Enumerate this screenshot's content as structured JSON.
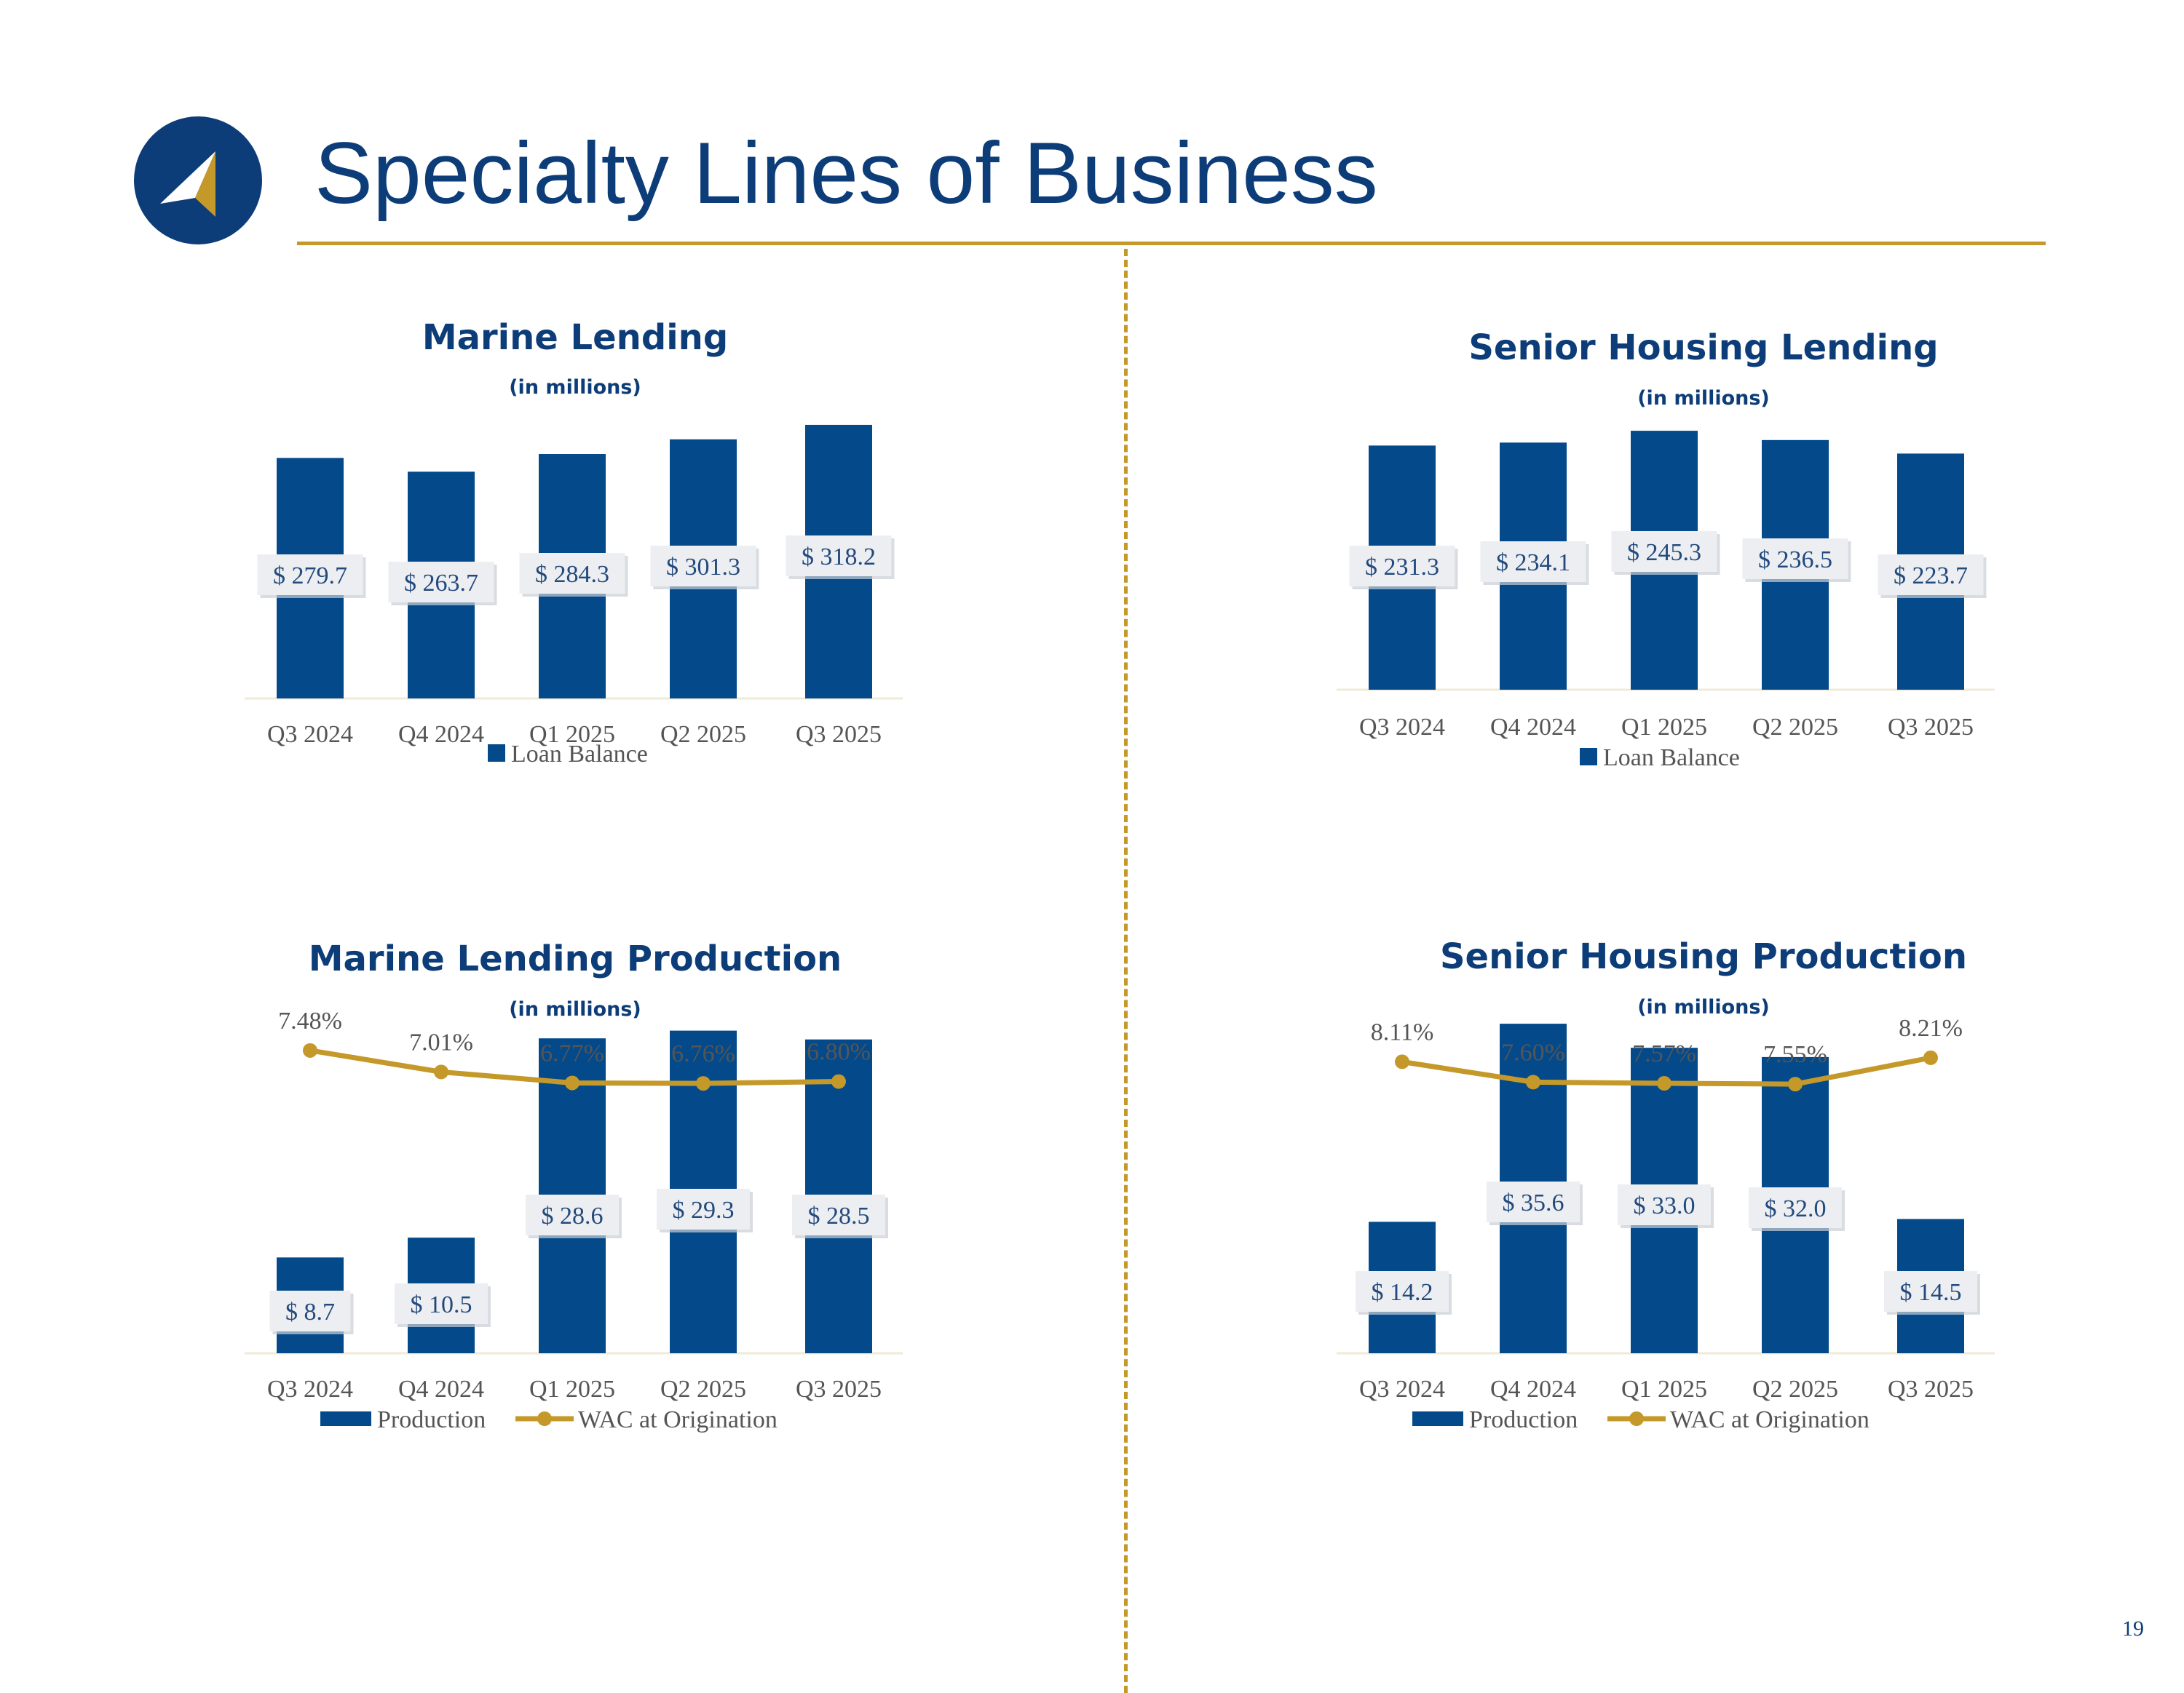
{
  "page": {
    "title": "Specialty Lines of Business",
    "page_number": "19",
    "colors": {
      "navy": "#0d3d78",
      "bar": "#044a8a",
      "gold": "#c4992a",
      "label_text": "#234a7c",
      "axis_text": "#555555"
    },
    "logo_icon": "compass-arrow-icon"
  },
  "chart_data": [
    {
      "id": "marine-lending",
      "type": "bar",
      "title": "Marine Lending",
      "subtitle": "(in millions)",
      "categories": [
        "Q3 2024",
        "Q4 2024",
        "Q1 2025",
        "Q2 2025",
        "Q3 2025"
      ],
      "series": [
        {
          "name": "Loan Balance",
          "values": [
            279.7,
            263.7,
            284.3,
            301.3,
            318.2
          ],
          "labels": [
            "$ 279.7",
            "$ 263.7",
            "$ 284.3",
            "$ 301.3",
            "$ 318.2"
          ]
        }
      ],
      "ylim": [
        0,
        330
      ],
      "legend": "bottom",
      "grid": false
    },
    {
      "id": "senior-housing-lending",
      "type": "bar",
      "title": "Senior Housing Lending",
      "subtitle": "(in millions)",
      "categories": [
        "Q3 2024",
        "Q4 2024",
        "Q1 2025",
        "Q2 2025",
        "Q3 2025"
      ],
      "series": [
        {
          "name": "Loan Balance",
          "values": [
            231.3,
            234.1,
            245.3,
            236.5,
            223.7
          ],
          "labels": [
            "$ 231.3",
            "$ 234.1",
            "$ 245.3",
            "$ 236.5",
            "$ 223.7"
          ]
        }
      ],
      "ylim": [
        0,
        255
      ],
      "legend": "bottom",
      "grid": false
    },
    {
      "id": "marine-lending-production",
      "type": "bar",
      "title": "Marine Lending Production",
      "subtitle": "(in millions)",
      "categories": [
        "Q3 2024",
        "Q4 2024",
        "Q1 2025",
        "Q2 2025",
        "Q3 2025"
      ],
      "series": [
        {
          "name": "Production",
          "type": "bar",
          "values": [
            8.7,
            10.5,
            28.6,
            29.3,
            28.5
          ],
          "labels": [
            "$ 8.7",
            "$ 10.5",
            "$ 28.6",
            "$ 29.3",
            "$ 28.5"
          ]
        },
        {
          "name": "WAC at Origination",
          "type": "line",
          "values": [
            7.48,
            7.01,
            6.77,
            6.76,
            6.8
          ],
          "labels": [
            "7.48%",
            "7.01%",
            "6.77%",
            "6.76%",
            "6.80%"
          ]
        }
      ],
      "ylim": [
        0,
        30
      ],
      "ylim_secondary": [
        4.2,
        7.7
      ],
      "legend": "bottom",
      "grid": false
    },
    {
      "id": "senior-housing-production",
      "type": "bar",
      "title": "Senior Housing Production",
      "subtitle": "(in millions)",
      "categories": [
        "Q3 2024",
        "Q4 2024",
        "Q1 2025",
        "Q2 2025",
        "Q3 2025"
      ],
      "series": [
        {
          "name": "Production",
          "type": "bar",
          "values": [
            14.2,
            35.6,
            33.0,
            32.0,
            14.5
          ],
          "labels": [
            "$ 14.2",
            "$ 35.6",
            "$ 33.0",
            "$ 32.0",
            "$ 14.5"
          ]
        },
        {
          "name": "WAC at Origination",
          "type": "line",
          "values": [
            8.11,
            7.6,
            7.57,
            7.55,
            8.21
          ],
          "labels": [
            "8.11%",
            "7.60%",
            "7.57%",
            "7.55%",
            "8.21%"
          ]
        }
      ],
      "ylim": [
        0,
        36
      ],
      "ylim_secondary": [
        5.0,
        8.5
      ],
      "legend": "bottom",
      "grid": false
    }
  ]
}
